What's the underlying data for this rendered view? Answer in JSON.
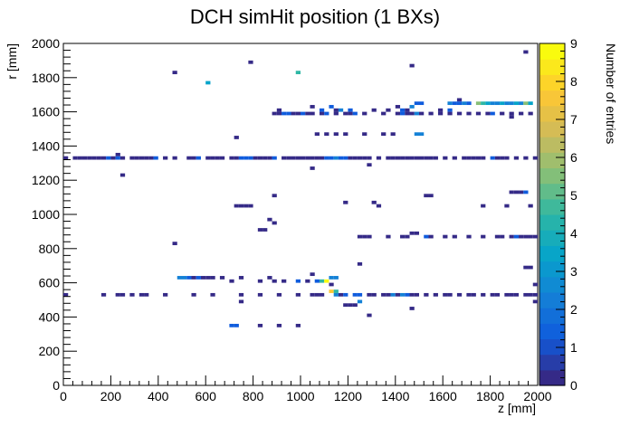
{
  "chart_data": {
    "type": "heatmap",
    "title": "DCH simHit position (1 BXs)",
    "xlabel": "z [mm]",
    "ylabel": "r [mm]",
    "zlabel": "Number of entries",
    "xlim": [
      0,
      2000
    ],
    "ylim": [
      0,
      2000
    ],
    "zlim": [
      0,
      9
    ],
    "x_ticks": [
      "0",
      "200",
      "400",
      "600",
      "800",
      "1000",
      "1200",
      "1400",
      "1600",
      "1800",
      "2000"
    ],
    "y_ticks": [
      "0",
      "200",
      "400",
      "600",
      "800",
      "1000",
      "1200",
      "1400",
      "1600",
      "1800",
      "2000"
    ],
    "z_ticks": [
      "0",
      "1",
      "2",
      "3",
      "4",
      "5",
      "6",
      "7",
      "8",
      "9"
    ],
    "bin_width": 20,
    "bin_height": 20,
    "colormap": [
      "#352a87",
      "#0f5cdd",
      "#1481d6",
      "#06a4ca",
      "#2eb7a4",
      "#87bf77",
      "#d1bb59",
      "#fec832",
      "#f9fb0e"
    ],
    "bins": [
      [
        1950,
        1950,
        1
      ],
      [
        790,
        1890,
        1
      ],
      [
        1470,
        1870,
        1
      ],
      [
        470,
        1830,
        1
      ],
      [
        990,
        1830,
        5
      ],
      [
        610,
        1770,
        4
      ],
      [
        1670,
        1670,
        1
      ],
      [
        1490,
        1650,
        2
      ],
      [
        1510,
        1650,
        2
      ],
      [
        1630,
        1650,
        3
      ],
      [
        1650,
        1650,
        2
      ],
      [
        1670,
        1650,
        2
      ],
      [
        1690,
        1650,
        3
      ],
      [
        1710,
        1650,
        2
      ],
      [
        1750,
        1650,
        6
      ],
      [
        1770,
        1650,
        5
      ],
      [
        1790,
        1650,
        4
      ],
      [
        1810,
        1650,
        3
      ],
      [
        1830,
        1650,
        3
      ],
      [
        1850,
        1650,
        4
      ],
      [
        1870,
        1650,
        3
      ],
      [
        1890,
        1650,
        3
      ],
      [
        1910,
        1650,
        4
      ],
      [
        1930,
        1650,
        3
      ],
      [
        1950,
        1650,
        6
      ],
      [
        1970,
        1650,
        4
      ],
      [
        1050,
        1630,
        1
      ],
      [
        1130,
        1630,
        2
      ],
      [
        1410,
        1630,
        1
      ],
      [
        1470,
        1630,
        3
      ],
      [
        910,
        1610,
        1
      ],
      [
        1090,
        1610,
        2
      ],
      [
        1150,
        1610,
        1
      ],
      [
        1170,
        1610,
        3
      ],
      [
        1210,
        1610,
        2
      ],
      [
        1310,
        1610,
        1
      ],
      [
        1370,
        1610,
        1
      ],
      [
        1430,
        1610,
        2
      ],
      [
        1450,
        1610,
        1
      ],
      [
        1590,
        1610,
        1
      ],
      [
        1630,
        1610,
        2
      ],
      [
        890,
        1590,
        1
      ],
      [
        910,
        1590,
        1
      ],
      [
        930,
        1590,
        2
      ],
      [
        950,
        1590,
        2
      ],
      [
        970,
        1590,
        1
      ],
      [
        990,
        1590,
        1
      ],
      [
        1010,
        1590,
        2
      ],
      [
        1030,
        1590,
        1
      ],
      [
        1050,
        1590,
        1
      ],
      [
        1090,
        1590,
        1
      ],
      [
        1110,
        1590,
        2
      ],
      [
        1150,
        1590,
        1
      ],
      [
        1190,
        1590,
        1
      ],
      [
        1210,
        1590,
        1
      ],
      [
        1230,
        1590,
        2
      ],
      [
        1270,
        1590,
        1
      ],
      [
        1350,
        1590,
        1
      ],
      [
        1410,
        1590,
        1
      ],
      [
        1430,
        1590,
        2
      ],
      [
        1450,
        1590,
        1
      ],
      [
        1470,
        1590,
        1
      ],
      [
        1490,
        1590,
        3
      ],
      [
        1510,
        1590,
        1
      ],
      [
        1550,
        1590,
        1
      ],
      [
        1590,
        1590,
        1
      ],
      [
        1630,
        1590,
        1
      ],
      [
        1670,
        1590,
        1
      ],
      [
        1710,
        1590,
        1
      ],
      [
        1750,
        1590,
        1
      ],
      [
        1790,
        1590,
        1
      ],
      [
        1810,
        1590,
        2
      ],
      [
        1850,
        1590,
        1
      ],
      [
        1890,
        1590,
        1
      ],
      [
        1930,
        1590,
        1
      ],
      [
        1970,
        1590,
        1
      ],
      [
        1890,
        1570,
        1
      ],
      [
        1070,
        1470,
        1
      ],
      [
        1110,
        1470,
        1
      ],
      [
        1150,
        1470,
        1
      ],
      [
        1190,
        1470,
        1
      ],
      [
        1270,
        1470,
        1
      ],
      [
        1350,
        1470,
        1
      ],
      [
        1390,
        1470,
        1
      ],
      [
        1490,
        1470,
        3
      ],
      [
        1510,
        1470,
        3
      ],
      [
        730,
        1450,
        1
      ],
      [
        230,
        1350,
        1
      ],
      [
        10,
        1330,
        1
      ],
      [
        50,
        1330,
        1
      ],
      [
        70,
        1330,
        1
      ],
      [
        90,
        1330,
        1
      ],
      [
        110,
        1330,
        1
      ],
      [
        130,
        1330,
        1
      ],
      [
        150,
        1330,
        1
      ],
      [
        170,
        1330,
        1
      ],
      [
        190,
        1330,
        2
      ],
      [
        210,
        1330,
        1
      ],
      [
        230,
        1330,
        2
      ],
      [
        250,
        1330,
        1
      ],
      [
        290,
        1330,
        1
      ],
      [
        310,
        1330,
        1
      ],
      [
        330,
        1330,
        1
      ],
      [
        350,
        1330,
        1
      ],
      [
        370,
        1330,
        1
      ],
      [
        390,
        1330,
        2
      ],
      [
        430,
        1330,
        1
      ],
      [
        470,
        1330,
        1
      ],
      [
        530,
        1330,
        1
      ],
      [
        550,
        1330,
        1
      ],
      [
        570,
        1330,
        2
      ],
      [
        610,
        1330,
        1
      ],
      [
        630,
        1330,
        1
      ],
      [
        650,
        1330,
        1
      ],
      [
        670,
        1330,
        1
      ],
      [
        710,
        1330,
        1
      ],
      [
        730,
        1330,
        1
      ],
      [
        750,
        1330,
        2
      ],
      [
        770,
        1330,
        2
      ],
      [
        790,
        1330,
        2
      ],
      [
        810,
        1330,
        1
      ],
      [
        830,
        1330,
        1
      ],
      [
        850,
        1330,
        1
      ],
      [
        870,
        1330,
        1
      ],
      [
        890,
        1330,
        2
      ],
      [
        930,
        1330,
        1
      ],
      [
        950,
        1330,
        1
      ],
      [
        970,
        1330,
        1
      ],
      [
        990,
        1330,
        1
      ],
      [
        1010,
        1330,
        1
      ],
      [
        1030,
        1330,
        1
      ],
      [
        1050,
        1330,
        1
      ],
      [
        1070,
        1330,
        1
      ],
      [
        1090,
        1330,
        1
      ],
      [
        1110,
        1330,
        2
      ],
      [
        1130,
        1330,
        2
      ],
      [
        1150,
        1330,
        3
      ],
      [
        1170,
        1330,
        2
      ],
      [
        1190,
        1330,
        2
      ],
      [
        1210,
        1330,
        1
      ],
      [
        1230,
        1330,
        1
      ],
      [
        1250,
        1330,
        1
      ],
      [
        1270,
        1330,
        1
      ],
      [
        1290,
        1330,
        1
      ],
      [
        1330,
        1330,
        1
      ],
      [
        1370,
        1330,
        1
      ],
      [
        1390,
        1330,
        1
      ],
      [
        1410,
        1330,
        1
      ],
      [
        1430,
        1330,
        1
      ],
      [
        1450,
        1330,
        1
      ],
      [
        1470,
        1330,
        1
      ],
      [
        1490,
        1330,
        1
      ],
      [
        1510,
        1330,
        1
      ],
      [
        1530,
        1330,
        1
      ],
      [
        1550,
        1330,
        1
      ],
      [
        1570,
        1330,
        1
      ],
      [
        1610,
        1330,
        1
      ],
      [
        1650,
        1330,
        1
      ],
      [
        1690,
        1330,
        1
      ],
      [
        1710,
        1330,
        1
      ],
      [
        1730,
        1330,
        1
      ],
      [
        1750,
        1330,
        1
      ],
      [
        1770,
        1330,
        1
      ],
      [
        1810,
        1330,
        2
      ],
      [
        1830,
        1330,
        1
      ],
      [
        1850,
        1330,
        1
      ],
      [
        1870,
        1330,
        1
      ],
      [
        1910,
        1330,
        1
      ],
      [
        1950,
        1330,
        1
      ],
      [
        1990,
        1330,
        1
      ],
      [
        1290,
        1290,
        1
      ],
      [
        1050,
        1270,
        1
      ],
      [
        250,
        1230,
        1
      ],
      [
        1890,
        1130,
        1
      ],
      [
        1910,
        1130,
        1
      ],
      [
        1930,
        1130,
        1
      ],
      [
        1950,
        1130,
        2
      ],
      [
        1530,
        1110,
        1
      ],
      [
        1550,
        1110,
        1
      ],
      [
        890,
        1110,
        1
      ],
      [
        1190,
        1070,
        1
      ],
      [
        1310,
        1070,
        1
      ],
      [
        730,
        1050,
        1
      ],
      [
        750,
        1050,
        1
      ],
      [
        770,
        1050,
        1
      ],
      [
        790,
        1050,
        1
      ],
      [
        1330,
        1050,
        1
      ],
      [
        1770,
        1050,
        1
      ],
      [
        1870,
        1050,
        1
      ],
      [
        1970,
        1050,
        1
      ],
      [
        870,
        970,
        1
      ],
      [
        890,
        950,
        1
      ],
      [
        830,
        910,
        1
      ],
      [
        850,
        910,
        1
      ],
      [
        1250,
        870,
        1
      ],
      [
        1270,
        870,
        1
      ],
      [
        1290,
        870,
        1
      ],
      [
        1370,
        870,
        1
      ],
      [
        1430,
        870,
        1
      ],
      [
        1450,
        870,
        1
      ],
      [
        1530,
        870,
        2
      ],
      [
        1550,
        870,
        1
      ],
      [
        1610,
        870,
        1
      ],
      [
        1650,
        870,
        1
      ],
      [
        1710,
        870,
        1
      ],
      [
        1770,
        870,
        1
      ],
      [
        1830,
        870,
        1
      ],
      [
        1850,
        870,
        1
      ],
      [
        1890,
        870,
        1
      ],
      [
        1910,
        870,
        2
      ],
      [
        1930,
        870,
        1
      ],
      [
        1950,
        870,
        1
      ],
      [
        1970,
        870,
        1
      ],
      [
        1990,
        870,
        1
      ],
      [
        1470,
        890,
        1
      ],
      [
        1490,
        890,
        1
      ],
      [
        470,
        830,
        1
      ],
      [
        1250,
        710,
        1
      ],
      [
        1950,
        690,
        1
      ],
      [
        1970,
        690,
        1
      ],
      [
        1050,
        650,
        1
      ],
      [
        490,
        630,
        3
      ],
      [
        510,
        630,
        3
      ],
      [
        530,
        630,
        2
      ],
      [
        550,
        630,
        1
      ],
      [
        570,
        630,
        2
      ],
      [
        590,
        630,
        1
      ],
      [
        610,
        630,
        1
      ],
      [
        630,
        630,
        1
      ],
      [
        670,
        630,
        1
      ],
      [
        750,
        630,
        1
      ],
      [
        870,
        630,
        1
      ],
      [
        1130,
        630,
        3
      ],
      [
        1150,
        630,
        3
      ],
      [
        710,
        610,
        1
      ],
      [
        830,
        610,
        1
      ],
      [
        890,
        610,
        1
      ],
      [
        930,
        610,
        1
      ],
      [
        990,
        610,
        2
      ],
      [
        1030,
        610,
        1
      ],
      [
        1070,
        610,
        2
      ],
      [
        1090,
        610,
        5
      ],
      [
        1110,
        610,
        9
      ],
      [
        1130,
        590,
        1
      ],
      [
        1990,
        590,
        1
      ],
      [
        1130,
        550,
        8
      ],
      [
        1150,
        550,
        5
      ],
      [
        10,
        530,
        1
      ],
      [
        170,
        530,
        1
      ],
      [
        230,
        530,
        1
      ],
      [
        250,
        530,
        1
      ],
      [
        290,
        530,
        1
      ],
      [
        330,
        530,
        1
      ],
      [
        350,
        530,
        1
      ],
      [
        430,
        530,
        1
      ],
      [
        550,
        530,
        1
      ],
      [
        630,
        530,
        1
      ],
      [
        750,
        530,
        1
      ],
      [
        830,
        530,
        1
      ],
      [
        910,
        530,
        1
      ],
      [
        990,
        530,
        1
      ],
      [
        1050,
        530,
        1
      ],
      [
        1070,
        530,
        1
      ],
      [
        1090,
        530,
        1
      ],
      [
        1150,
        530,
        3
      ],
      [
        1170,
        530,
        1
      ],
      [
        1190,
        530,
        2
      ],
      [
        1230,
        530,
        2
      ],
      [
        1250,
        530,
        2
      ],
      [
        1290,
        530,
        1
      ],
      [
        1310,
        530,
        1
      ],
      [
        1350,
        530,
        1
      ],
      [
        1370,
        530,
        1
      ],
      [
        1390,
        530,
        3
      ],
      [
        1410,
        530,
        1
      ],
      [
        1430,
        530,
        3
      ],
      [
        1450,
        530,
        2
      ],
      [
        1470,
        530,
        1
      ],
      [
        1490,
        530,
        1
      ],
      [
        1530,
        530,
        1
      ],
      [
        1570,
        530,
        1
      ],
      [
        1610,
        530,
        1
      ],
      [
        1630,
        530,
        1
      ],
      [
        1670,
        530,
        1
      ],
      [
        1710,
        530,
        1
      ],
      [
        1730,
        530,
        1
      ],
      [
        1770,
        530,
        1
      ],
      [
        1810,
        530,
        1
      ],
      [
        1830,
        530,
        1
      ],
      [
        1870,
        530,
        1
      ],
      [
        1890,
        530,
        1
      ],
      [
        1910,
        530,
        1
      ],
      [
        1950,
        530,
        1
      ],
      [
        1970,
        530,
        1
      ],
      [
        1990,
        530,
        1
      ],
      [
        750,
        490,
        1
      ],
      [
        1250,
        490,
        3
      ],
      [
        1990,
        490,
        1
      ],
      [
        1190,
        470,
        1
      ],
      [
        1210,
        470,
        1
      ],
      [
        1230,
        470,
        1
      ],
      [
        1470,
        450,
        1
      ],
      [
        1290,
        410,
        1
      ],
      [
        710,
        350,
        2
      ],
      [
        730,
        350,
        2
      ],
      [
        830,
        350,
        1
      ],
      [
        910,
        350,
        1
      ],
      [
        990,
        350,
        1
      ]
    ]
  }
}
